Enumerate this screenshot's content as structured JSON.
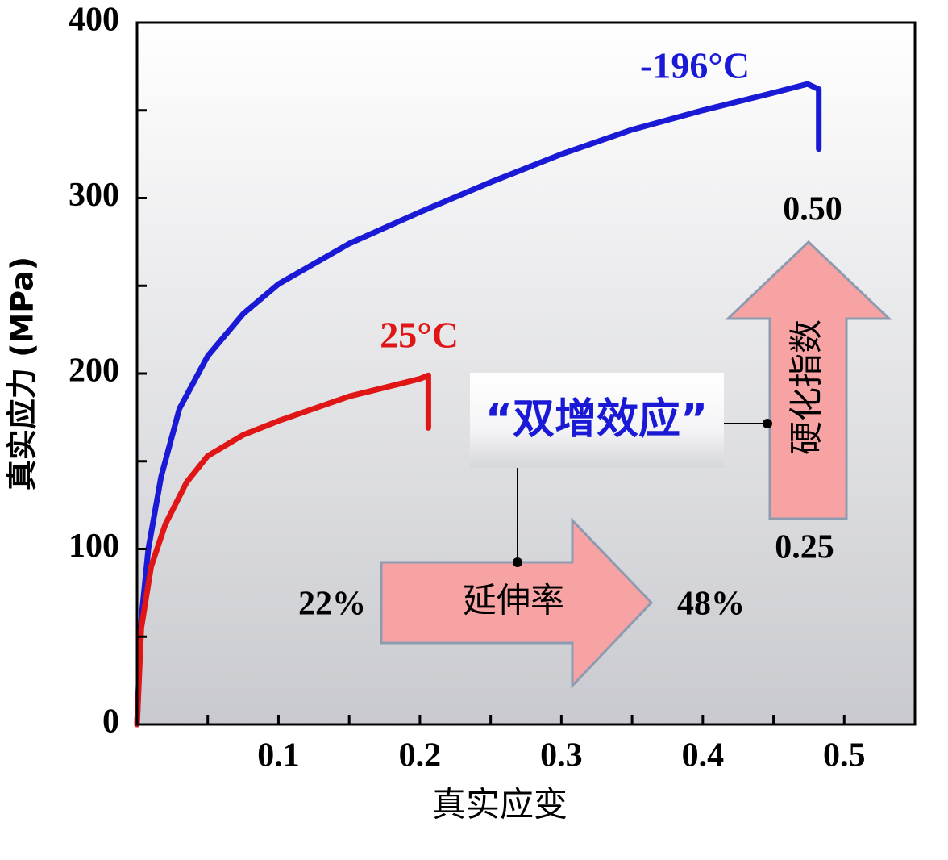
{
  "chart_data": {
    "type": "line",
    "xlabel": "真实应变",
    "ylabel": "真实应力 (MPa)",
    "xlim": [
      0,
      0.55
    ],
    "ylim": [
      0,
      400
    ],
    "xticks": [
      0.1,
      0.2,
      0.3,
      0.4,
      0.5
    ],
    "yticks": [
      0,
      100,
      200,
      300,
      400
    ],
    "xminorticks": [
      0.05,
      0.1,
      0.15,
      0.2,
      0.25,
      0.3,
      0.35,
      0.4,
      0.45,
      0.5
    ],
    "yminorticks": [
      50,
      100,
      150,
      200,
      250,
      300,
      350
    ],
    "series": [
      {
        "name": "-196°C",
        "color": "#1a1ad6",
        "x": [
          0,
          0.003,
          0.008,
          0.017,
          0.03,
          0.05,
          0.075,
          0.1,
          0.15,
          0.2,
          0.25,
          0.3,
          0.35,
          0.4,
          0.45,
          0.474,
          0.482,
          0.482
        ],
        "values": [
          0,
          60,
          100,
          141,
          180,
          210,
          234,
          251,
          274,
          292,
          309,
          325,
          339,
          350,
          360,
          365,
          362,
          328
        ]
      },
      {
        "name": "25°C",
        "color": "#e01515",
        "x": [
          0,
          0.003,
          0.01,
          0.02,
          0.035,
          0.05,
          0.075,
          0.1,
          0.15,
          0.2,
          0.206,
          0.206
        ],
        "values": [
          0,
          55,
          90,
          114,
          138,
          153,
          165,
          173,
          187,
          197,
          199,
          169
        ]
      }
    ],
    "annotations": {
      "effect": "“双增效应”",
      "elongation": "延伸率",
      "elongation_from": "22%",
      "elongation_to": "48%",
      "hardening": "硬化指数",
      "hardening_to": "0.50",
      "hardening_from": "0.25"
    }
  }
}
